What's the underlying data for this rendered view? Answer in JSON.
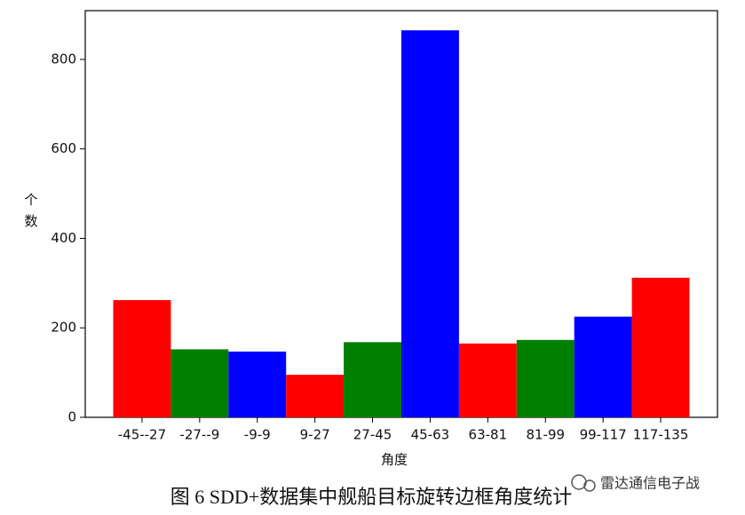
{
  "chart_data": {
    "type": "bar",
    "y_label": "个数",
    "x_label": "角度",
    "categories": [
      "-45--27",
      "-27--9",
      "-9-9",
      "9-27",
      "27-45",
      "45-63",
      "63-81",
      "81-99",
      "99-117",
      "117-135"
    ],
    "values": [
      262,
      152,
      147,
      95,
      168,
      865,
      165,
      173,
      225,
      312
    ],
    "colors": [
      "#ff0000",
      "#008000",
      "#0000ff",
      "#ff0000",
      "#008000",
      "#0000ff",
      "#ff0000",
      "#008000",
      "#0000ff",
      "#ff0000"
    ],
    "ylim": [
      0,
      909
    ],
    "yticks": [
      0,
      200,
      400,
      600,
      800
    ]
  },
  "caption": "图 6 SDD+数据集中舰船目标旋转边框角度统计",
  "watermark": "雷达通信电子战"
}
